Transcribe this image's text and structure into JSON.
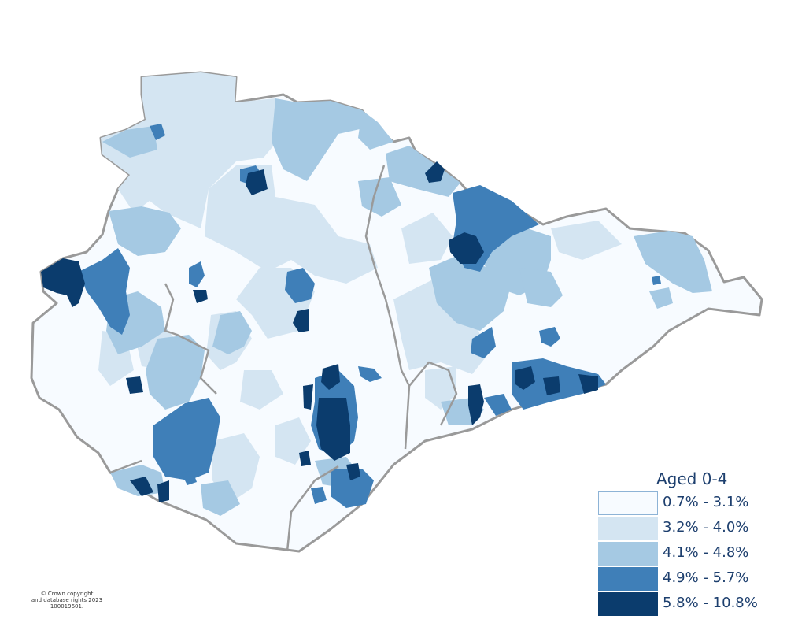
{
  "legend": {
    "title": "Aged 0-4",
    "classes": [
      {
        "label": "0.7% - 3.1%",
        "color": "#f7fbff"
      },
      {
        "label": "3.2% - 4.0%",
        "color": "#d4e5f2"
      },
      {
        "label": "4.1% - 4.8%",
        "color": "#a5c9e3"
      },
      {
        "label": "4.9% - 5.7%",
        "color": "#3f7fb8"
      },
      {
        "label": "5.8% - 10.8%",
        "color": "#0b3c6d"
      }
    ]
  },
  "copyright": {
    "line1": "© Crown copyright",
    "line2": "and database rights 2023",
    "line3": "100019601."
  },
  "colors": {
    "boundary": "#9a9a9a"
  }
}
